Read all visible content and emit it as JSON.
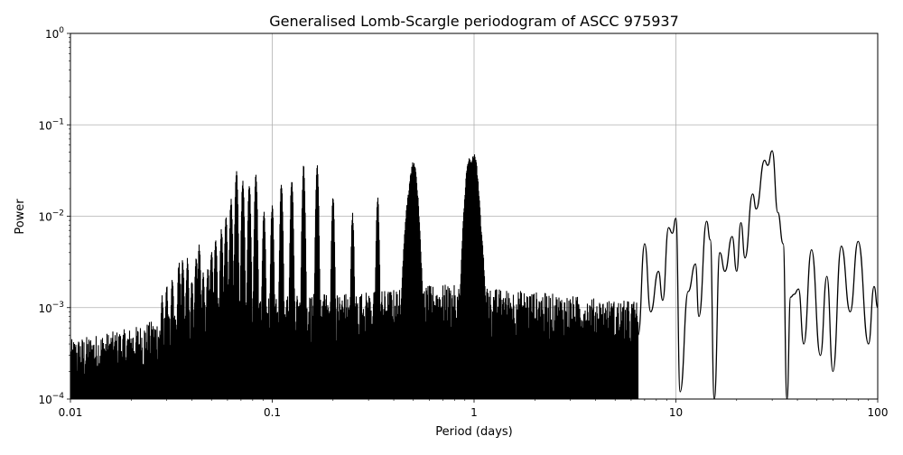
{
  "chart_data": {
    "type": "line",
    "title": "Generalised Lomb-Scargle periodogram of ASCC 975937",
    "xlabel": "Period (days)",
    "ylabel": "Power",
    "xscale": "log",
    "yscale": "log",
    "xlim": [
      0.01,
      100
    ],
    "ylim": [
      0.0001,
      1
    ],
    "grid": true,
    "legend": null,
    "x_ticks": [
      {
        "value": 0.01,
        "label": "0.01"
      },
      {
        "value": 0.1,
        "label": "0.1"
      },
      {
        "value": 1,
        "label": "1"
      },
      {
        "value": 10,
        "label": "10"
      },
      {
        "value": 100,
        "label": "100"
      }
    ],
    "y_ticks": [
      {
        "value": 0.0001,
        "base": "10",
        "exp": "−4"
      },
      {
        "value": 0.001,
        "base": "10",
        "exp": "−3"
      },
      {
        "value": 0.01,
        "base": "10",
        "exp": "−2"
      },
      {
        "value": 0.1,
        "base": "10",
        "exp": "−1"
      },
      {
        "value": 1,
        "base": "10",
        "exp": "0"
      }
    ],
    "line_color": "#000000",
    "grid_color": "#b0b0b0",
    "alias_peaks": [
      {
        "period": 0.0285,
        "power": 0.0014
      },
      {
        "period": 0.03,
        "power": 0.0018
      },
      {
        "period": 0.032,
        "power": 0.0022
      },
      {
        "period": 0.0345,
        "power": 0.0033
      },
      {
        "period": 0.036,
        "power": 0.0035
      },
      {
        "period": 0.038,
        "power": 0.0035
      },
      {
        "period": 0.04,
        "power": 0.0022
      },
      {
        "period": 0.042,
        "power": 0.004
      },
      {
        "period": 0.0435,
        "power": 0.005
      },
      {
        "period": 0.0455,
        "power": 0.0025
      },
      {
        "period": 0.048,
        "power": 0.003
      },
      {
        "period": 0.05,
        "power": 0.0045
      },
      {
        "period": 0.0525,
        "power": 0.006
      },
      {
        "period": 0.056,
        "power": 0.0075
      },
      {
        "period": 0.059,
        "power": 0.01
      },
      {
        "period": 0.0625,
        "power": 0.016
      },
      {
        "period": 0.0665,
        "power": 0.033
      },
      {
        "period": 0.0715,
        "power": 0.026
      },
      {
        "period": 0.077,
        "power": 0.023
      },
      {
        "period": 0.083,
        "power": 0.029
      },
      {
        "period": 0.091,
        "power": 0.012
      },
      {
        "period": 0.1,
        "power": 0.014
      },
      {
        "period": 0.111,
        "power": 0.024
      },
      {
        "period": 0.125,
        "power": 0.027
      },
      {
        "period": 0.143,
        "power": 0.038
      },
      {
        "period": 0.167,
        "power": 0.037
      },
      {
        "period": 0.2,
        "power": 0.017
      },
      {
        "period": 0.25,
        "power": 0.011
      },
      {
        "period": 0.333,
        "power": 0.017
      },
      {
        "period": 0.48,
        "power": 0.019
      },
      {
        "period": 0.5,
        "power": 0.04
      },
      {
        "period": 0.95,
        "power": 0.044
      },
      {
        "period": 1.0,
        "power": 0.048
      },
      {
        "period": 1.05,
        "power": 0.01
      }
    ],
    "long_period_curve": [
      {
        "period": 6.5,
        "power": 0.0005
      },
      {
        "period": 7.0,
        "power": 0.005
      },
      {
        "period": 7.5,
        "power": 0.0009
      },
      {
        "period": 8.2,
        "power": 0.0025
      },
      {
        "period": 8.6,
        "power": 0.0012
      },
      {
        "period": 9.2,
        "power": 0.0075
      },
      {
        "period": 9.6,
        "power": 0.0065
      },
      {
        "period": 10.0,
        "power": 0.0095
      },
      {
        "period": 10.5,
        "power": 0.00012
      },
      {
        "period": 11.5,
        "power": 0.0015
      },
      {
        "period": 12.5,
        "power": 0.003
      },
      {
        "period": 13.0,
        "power": 0.0008
      },
      {
        "period": 14.2,
        "power": 0.0088
      },
      {
        "period": 14.8,
        "power": 0.0055
      },
      {
        "period": 15.5,
        "power": 0.0001
      },
      {
        "period": 16.5,
        "power": 0.004
      },
      {
        "period": 17.5,
        "power": 0.0025
      },
      {
        "period": 19.0,
        "power": 0.006
      },
      {
        "period": 20.0,
        "power": 0.0025
      },
      {
        "period": 21.0,
        "power": 0.0085
      },
      {
        "period": 22.0,
        "power": 0.0035
      },
      {
        "period": 24.0,
        "power": 0.0175
      },
      {
        "period": 25.0,
        "power": 0.012
      },
      {
        "period": 27.5,
        "power": 0.041
      },
      {
        "period": 28.5,
        "power": 0.036
      },
      {
        "period": 30.0,
        "power": 0.052
      },
      {
        "period": 32.0,
        "power": 0.011
      },
      {
        "period": 34.0,
        "power": 0.005
      },
      {
        "period": 35.5,
        "power": 0.0001
      },
      {
        "period": 37.0,
        "power": 0.0013
      },
      {
        "period": 38.5,
        "power": 0.0014
      },
      {
        "period": 40.5,
        "power": 0.0016
      },
      {
        "period": 43.0,
        "power": 0.0004
      },
      {
        "period": 47.0,
        "power": 0.0043
      },
      {
        "period": 52.0,
        "power": 0.0003
      },
      {
        "period": 56.0,
        "power": 0.0022
      },
      {
        "period": 60.0,
        "power": 0.0002
      },
      {
        "period": 66.0,
        "power": 0.0047
      },
      {
        "period": 73.0,
        "power": 0.0009
      },
      {
        "period": 80.0,
        "power": 0.0053
      },
      {
        "period": 90.0,
        "power": 0.0004
      },
      {
        "period": 96.0,
        "power": 0.0017
      },
      {
        "period": 100.0,
        "power": 0.001
      }
    ],
    "noise_floor": [
      {
        "period": 0.01,
        "power": 0.0003
      },
      {
        "period": 0.02,
        "power": 0.0004
      },
      {
        "period": 0.05,
        "power": 0.0008
      },
      {
        "period": 0.1,
        "power": 0.0009
      },
      {
        "period": 0.3,
        "power": 0.001
      },
      {
        "period": 0.7,
        "power": 0.0012
      },
      {
        "period": 2.0,
        "power": 0.001
      },
      {
        "period": 5.0,
        "power": 0.0008
      }
    ]
  }
}
